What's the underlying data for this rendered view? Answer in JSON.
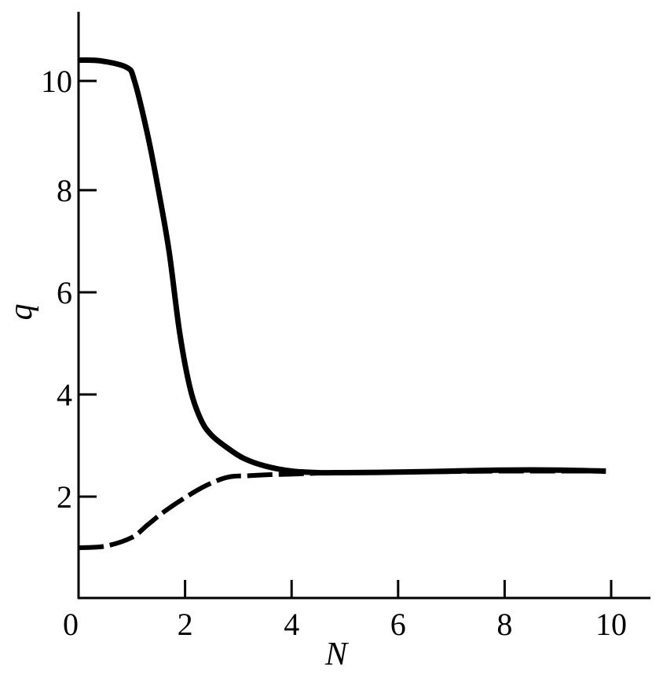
{
  "chart_data": {
    "type": "line",
    "title": "",
    "xlabel": "N",
    "ylabel": "q",
    "xlim": [
      0,
      10.8
    ],
    "ylim": [
      0,
      11.2
    ],
    "grid": false,
    "legend": "none",
    "x_ticks": [
      "0",
      "2",
      "4",
      "6",
      "8",
      "10"
    ],
    "y_ticks": [
      "2",
      "4",
      "6",
      "8",
      "10"
    ],
    "series": [
      {
        "style": "solid",
        "color": "#000000",
        "x": [
          0,
          0.4,
          0.9,
          1.05,
          1.3,
          1.5,
          1.7,
          1.9,
          2.1,
          2.3,
          2.5,
          2.8,
          3.1,
          3.5,
          4.0,
          4.5,
          5.0,
          6.0,
          7.0,
          8.0,
          9.0,
          9.9
        ],
        "y": [
          10.38,
          10.37,
          10.25,
          10.0,
          9.0,
          8.0,
          6.8,
          5.2,
          4.1,
          3.5,
          3.2,
          2.95,
          2.75,
          2.6,
          2.5,
          2.47,
          2.47,
          2.48,
          2.5,
          2.52,
          2.52,
          2.5
        ]
      },
      {
        "style": "dashed",
        "color": "#000000",
        "x": [
          0,
          0.5,
          1.0,
          1.3,
          1.6,
          2.0,
          2.4,
          2.8,
          3.2,
          3.6,
          4.0,
          4.5,
          5.0,
          6.0,
          7.0,
          8.0,
          9.0,
          9.9
        ],
        "y": [
          1.0,
          1.03,
          1.2,
          1.45,
          1.7,
          1.98,
          2.22,
          2.38,
          2.41,
          2.43,
          2.44,
          2.46,
          2.47,
          2.48,
          2.49,
          2.5,
          2.5,
          2.5
        ]
      }
    ]
  }
}
